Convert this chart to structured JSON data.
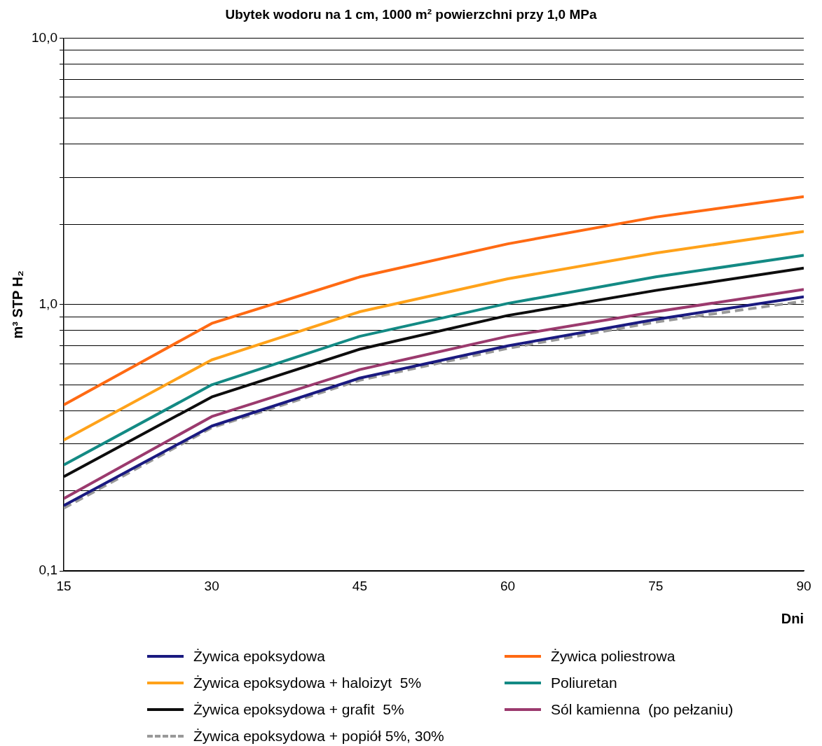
{
  "chart_data": {
    "type": "line",
    "title": "Ubytek wodoru na 1 cm, 1000 m² powierzchni przy 1,0 MPa",
    "xlabel": "Dni",
    "ylabel": "m³ STP H₂",
    "x": [
      15,
      30,
      45,
      60,
      75,
      90
    ],
    "xlim": [
      15,
      90
    ],
    "xticks": [
      15,
      30,
      45,
      60,
      75,
      90
    ],
    "log": "y",
    "ylim": [
      0.1,
      10
    ],
    "yticks": [
      {
        "value": 0.1,
        "label": "0,1"
      },
      {
        "value": 0.2,
        "label": null
      },
      {
        "value": 0.3,
        "label": null
      },
      {
        "value": 0.4,
        "label": null
      },
      {
        "value": 0.5,
        "label": null
      },
      {
        "value": 0.6,
        "label": null
      },
      {
        "value": 0.7,
        "label": null
      },
      {
        "value": 0.8,
        "label": null
      },
      {
        "value": 0.9,
        "label": null
      },
      {
        "value": 1,
        "label": "1,0"
      },
      {
        "value": 2,
        "label": null
      },
      {
        "value": 3,
        "label": null
      },
      {
        "value": 4,
        "label": null
      },
      {
        "value": 5,
        "label": null
      },
      {
        "value": 6,
        "label": null
      },
      {
        "value": 7,
        "label": null
      },
      {
        "value": 8,
        "label": null
      },
      {
        "value": 9,
        "label": null
      },
      {
        "value": 10,
        "label": "10,0"
      }
    ],
    "grid": "y",
    "legend": "bottom",
    "marker": "none",
    "line_style": "solid",
    "series": [
      {
        "name": "Żywica epoksydowa",
        "color": "#1a1a80",
        "values": [
          0.176,
          0.35,
          0.53,
          0.7,
          0.88,
          1.07
        ]
      },
      {
        "name": "Żywica poliestrowa",
        "color": "#ff6a13",
        "values": [
          0.42,
          0.85,
          1.27,
          1.69,
          2.13,
          2.54
        ]
      },
      {
        "name": "Żywica epoksydowa + haloizyt  5%",
        "color": "#ffa21a",
        "values": [
          0.31,
          0.62,
          0.94,
          1.25,
          1.56,
          1.88
        ]
      },
      {
        "name": "Poliuretan",
        "color": "#138a84",
        "values": [
          0.25,
          0.5,
          0.76,
          1.01,
          1.27,
          1.53
        ]
      },
      {
        "name": "Żywica epoksydowa + grafit  5%",
        "color": "#0d0d0d",
        "values": [
          0.226,
          0.45,
          0.68,
          0.91,
          1.13,
          1.37
        ]
      },
      {
        "name": "Sól kamienna  (po pełzaniu)",
        "color": "#9b3a6e",
        "values": [
          0.187,
          0.38,
          0.57,
          0.76,
          0.94,
          1.14
        ]
      },
      {
        "name": "Żywica epoksydowa + popiół 5%, 30%",
        "color": "#999999",
        "line_style": "dashed",
        "values": [
          0.172,
          0.345,
          0.52,
          0.685,
          0.86,
          1.03
        ]
      }
    ]
  }
}
